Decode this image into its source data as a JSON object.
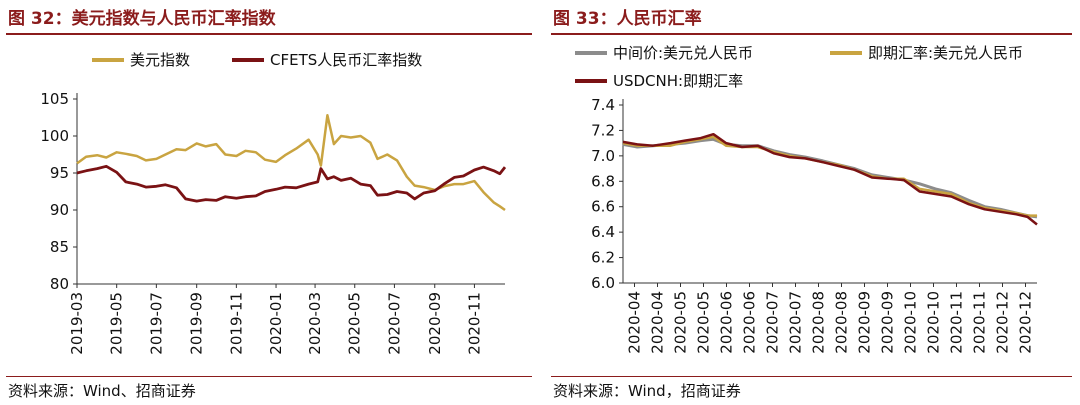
{
  "colors": {
    "gold": "#c9a441",
    "darkred": "#7a1214",
    "gray": "#8c8c8c",
    "title": "#8b1c1c"
  },
  "left_panel": {
    "title": "图 32：美元指数与人民币汇率指数",
    "source": "资料来源：Wind、招商证券"
  },
  "right_panel": {
    "title": "图 33：人民币汇率",
    "source": "资料来源：Wind，招商证券"
  },
  "chart_data": [
    {
      "type": "line",
      "title": "美元指数与人民币汇率指数",
      "ylim": [
        80,
        105
      ],
      "yticks": [
        80,
        85,
        90,
        95,
        100,
        105
      ],
      "xlim": [
        "2019-03-01",
        "2020-12-18"
      ],
      "xticks": [
        "2019-03",
        "2019-05",
        "2019-07",
        "2019-09",
        "2019-11",
        "2020-01",
        "2020-03",
        "2020-05",
        "2020-07",
        "2020-09",
        "2020-11"
      ],
      "legend": "top-left",
      "series": [
        {
          "name": "美元指数",
          "color": "#c9a441",
          "x": [
            "2019-03-01",
            "2019-03-15",
            "2019-04-01",
            "2019-04-15",
            "2019-05-01",
            "2019-05-15",
            "2019-06-01",
            "2019-06-15",
            "2019-07-01",
            "2019-07-15",
            "2019-08-01",
            "2019-08-15",
            "2019-09-01",
            "2019-09-15",
            "2019-10-01",
            "2019-10-15",
            "2019-11-01",
            "2019-11-15",
            "2019-12-01",
            "2019-12-15",
            "2020-01-01",
            "2020-01-15",
            "2020-02-01",
            "2020-02-20",
            "2020-03-05",
            "2020-03-10",
            "2020-03-20",
            "2020-03-30",
            "2020-04-10",
            "2020-04-25",
            "2020-05-10",
            "2020-05-25",
            "2020-06-05",
            "2020-06-20",
            "2020-07-05",
            "2020-07-20",
            "2020-08-01",
            "2020-08-15",
            "2020-09-01",
            "2020-09-15",
            "2020-10-01",
            "2020-10-15",
            "2020-11-01",
            "2020-11-15",
            "2020-12-01",
            "2020-12-10",
            "2020-12-18"
          ],
          "values": [
            96.3,
            97.2,
            97.4,
            97.1,
            97.8,
            97.6,
            97.3,
            96.7,
            96.9,
            97.5,
            98.2,
            98.1,
            99.0,
            98.6,
            98.9,
            97.5,
            97.3,
            98.0,
            97.8,
            96.8,
            96.5,
            97.4,
            98.3,
            99.5,
            97.5,
            96.0,
            102.8,
            98.9,
            100.0,
            99.8,
            100.0,
            99.1,
            96.9,
            97.5,
            96.7,
            94.5,
            93.3,
            93.1,
            92.7,
            93.2,
            93.5,
            93.5,
            93.9,
            92.4,
            91.0,
            90.5,
            90.0
          ]
        },
        {
          "name": "CFETS人民币汇率指数",
          "color": "#7a1214",
          "x": [
            "2019-03-01",
            "2019-03-15",
            "2019-04-01",
            "2019-04-15",
            "2019-05-01",
            "2019-05-15",
            "2019-06-01",
            "2019-06-15",
            "2019-07-01",
            "2019-07-15",
            "2019-08-01",
            "2019-08-15",
            "2019-09-01",
            "2019-09-15",
            "2019-10-01",
            "2019-10-15",
            "2019-11-01",
            "2019-11-15",
            "2019-12-01",
            "2019-12-15",
            "2020-01-01",
            "2020-01-15",
            "2020-02-01",
            "2020-02-20",
            "2020-03-05",
            "2020-03-10",
            "2020-03-20",
            "2020-03-30",
            "2020-04-10",
            "2020-04-25",
            "2020-05-10",
            "2020-05-25",
            "2020-06-05",
            "2020-06-20",
            "2020-07-05",
            "2020-07-20",
            "2020-08-01",
            "2020-08-15",
            "2020-09-01",
            "2020-09-15",
            "2020-10-01",
            "2020-10-15",
            "2020-11-01",
            "2020-11-15",
            "2020-12-01",
            "2020-12-10",
            "2020-12-18"
          ],
          "values": [
            95.0,
            95.3,
            95.6,
            95.9,
            95.1,
            93.8,
            93.5,
            93.1,
            93.2,
            93.4,
            93.0,
            91.5,
            91.2,
            91.4,
            91.3,
            91.8,
            91.6,
            91.8,
            91.9,
            92.5,
            92.8,
            93.1,
            93.0,
            93.5,
            93.8,
            95.6,
            94.2,
            94.5,
            94.0,
            94.3,
            93.5,
            93.3,
            92.0,
            92.1,
            92.5,
            92.3,
            91.5,
            92.3,
            92.6,
            93.5,
            94.4,
            94.6,
            95.4,
            95.8,
            95.3,
            94.9,
            95.8
          ]
        }
      ]
    },
    {
      "type": "line",
      "title": "人民币汇率",
      "ylim": [
        6.0,
        7.4
      ],
      "yticks": [
        6.0,
        6.2,
        6.4,
        6.6,
        6.8,
        7.0,
        7.2,
        7.4
      ],
      "xlim": [
        "2020-04-01",
        "2020-12-18"
      ],
      "xticks": [
        "2020-04",
        "2020-04",
        "2020-05",
        "2020-05",
        "2020-06",
        "2020-06",
        "2020-07",
        "2020-07",
        "2020-08",
        "2020-08",
        "2020-09",
        "2020-09",
        "2020-10",
        "2020-10",
        "2020-11",
        "2020-11",
        "2020-12",
        "2020-12"
      ],
      "legend": "top",
      "series": [
        {
          "name": "中间价:美元兑人民币",
          "color": "#8c8c8c",
          "x": [
            "2020-04-01",
            "2020-04-10",
            "2020-04-20",
            "2020-05-01",
            "2020-05-10",
            "2020-05-20",
            "2020-05-28",
            "2020-06-05",
            "2020-06-15",
            "2020-06-25",
            "2020-07-05",
            "2020-07-15",
            "2020-07-25",
            "2020-08-05",
            "2020-08-15",
            "2020-08-25",
            "2020-09-05",
            "2020-09-15",
            "2020-09-25",
            "2020-10-05",
            "2020-10-15",
            "2020-10-25",
            "2020-11-05",
            "2020-11-15",
            "2020-11-25",
            "2020-12-05",
            "2020-12-12",
            "2020-12-18"
          ],
          "values": [
            7.09,
            7.07,
            7.08,
            7.09,
            7.1,
            7.12,
            7.13,
            7.09,
            7.08,
            7.08,
            7.04,
            7.01,
            6.99,
            6.96,
            6.93,
            6.9,
            6.85,
            6.83,
            6.81,
            6.78,
            6.74,
            6.71,
            6.65,
            6.6,
            6.58,
            6.55,
            6.53,
            6.52
          ]
        },
        {
          "name": "即期汇率:美元兑人民币",
          "color": "#c9a441",
          "x": [
            "2020-04-01",
            "2020-04-10",
            "2020-04-20",
            "2020-05-01",
            "2020-05-10",
            "2020-05-20",
            "2020-05-28",
            "2020-06-05",
            "2020-06-15",
            "2020-06-25",
            "2020-07-05",
            "2020-07-15",
            "2020-07-25",
            "2020-08-05",
            "2020-08-15",
            "2020-08-25",
            "2020-09-05",
            "2020-09-15",
            "2020-09-25",
            "2020-10-05",
            "2020-10-15",
            "2020-10-25",
            "2020-11-05",
            "2020-11-15",
            "2020-11-25",
            "2020-12-05",
            "2020-12-12",
            "2020-12-18"
          ],
          "values": [
            7.1,
            7.08,
            7.08,
            7.08,
            7.11,
            7.13,
            7.15,
            7.08,
            7.07,
            7.07,
            7.03,
            7.0,
            6.98,
            6.95,
            6.93,
            6.89,
            6.84,
            6.82,
            6.82,
            6.74,
            6.72,
            6.7,
            6.63,
            6.59,
            6.57,
            6.55,
            6.53,
            6.53
          ]
        },
        {
          "name": "USDCNH:即期汇率",
          "color": "#7a1214",
          "x": [
            "2020-04-01",
            "2020-04-10",
            "2020-04-20",
            "2020-05-01",
            "2020-05-10",
            "2020-05-20",
            "2020-05-28",
            "2020-06-05",
            "2020-06-15",
            "2020-06-25",
            "2020-07-05",
            "2020-07-15",
            "2020-07-25",
            "2020-08-05",
            "2020-08-15",
            "2020-08-25",
            "2020-09-05",
            "2020-09-15",
            "2020-09-25",
            "2020-10-05",
            "2020-10-15",
            "2020-10-25",
            "2020-11-05",
            "2020-11-15",
            "2020-11-25",
            "2020-12-05",
            "2020-12-12",
            "2020-12-18"
          ],
          "values": [
            7.11,
            7.09,
            7.08,
            7.1,
            7.12,
            7.14,
            7.17,
            7.1,
            7.07,
            7.08,
            7.02,
            6.99,
            6.98,
            6.95,
            6.92,
            6.89,
            6.83,
            6.82,
            6.81,
            6.72,
            6.7,
            6.68,
            6.62,
            6.58,
            6.56,
            6.54,
            6.52,
            6.46
          ]
        }
      ]
    }
  ]
}
